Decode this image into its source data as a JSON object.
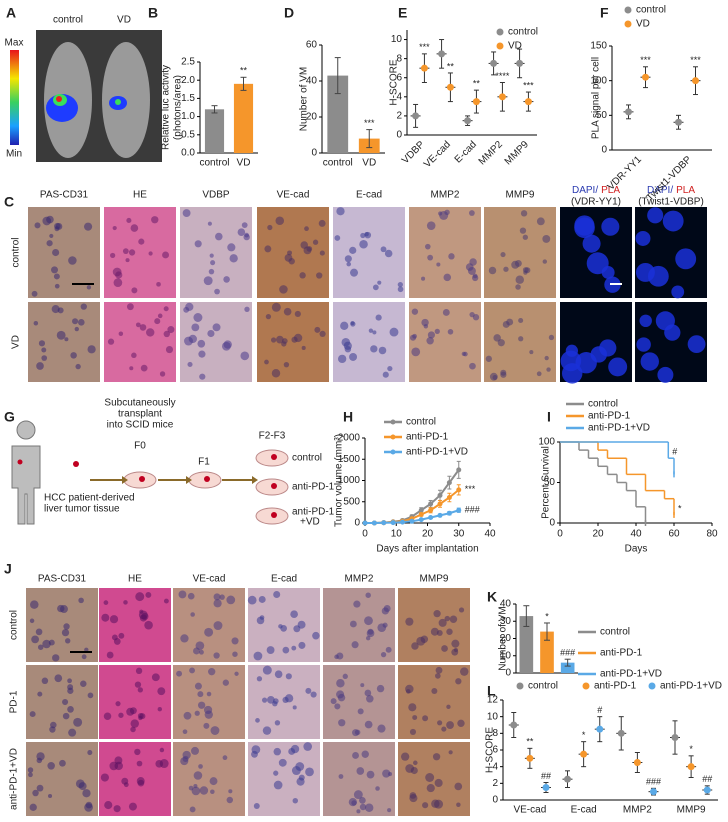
{
  "figure": {
    "A": {
      "panel": "A",
      "labels": [
        "control",
        "VD"
      ],
      "scale_max": "Max",
      "scale_min": "Min"
    },
    "C": {
      "panel": "C",
      "columns": [
        "PAS-CD31",
        "HE",
        "VDBP",
        "VE-cad",
        "E-cad",
        "MMP2",
        "MMP9"
      ],
      "pla_columns": [
        {
          "dapi": "DAPI/",
          "pla": "PLA",
          "target": "(VDR-YY1)"
        },
        {
          "dapi": "DAPI/",
          "pla": "PLA",
          "target": "(Twist1-VDBP)"
        }
      ],
      "rows": [
        "control",
        "VD"
      ]
    },
    "G": {
      "panel": "G",
      "transplant": [
        "Subcutaneously",
        "transplant",
        "into SCID mice"
      ],
      "generations": [
        "F0",
        "F1",
        "F2-F3"
      ],
      "groups": [
        "control",
        "anti-PD-1"
      ],
      "group3": [
        "anti-PD-1",
        "+VD"
      ],
      "source": [
        "HCC patient-derived",
        "liver tumor tissue"
      ]
    },
    "J": {
      "panel": "J",
      "columns": [
        "PAS-CD31",
        "HE",
        "VE-cad",
        "E-cad",
        "MMP2",
        "MMP9"
      ],
      "rows": [
        "control",
        "PD-1",
        "anti-PD-1+VD"
      ]
    }
  },
  "chart_data": [
    {
      "type": "bar",
      "panel": "B",
      "ylabel": [
        "Relative luc activity",
        "(photons/area)"
      ],
      "categories": [
        "control",
        "VD"
      ],
      "values": [
        1.2,
        1.9
      ],
      "errors": [
        0.1,
        0.18
      ],
      "colors": [
        "#8c8c8c",
        "#f5962b"
      ],
      "significance": [
        null,
        "**"
      ],
      "ylim": [
        0,
        2.5
      ],
      "yticks": [
        {
          "value": 0,
          "label": "0.0"
        },
        {
          "value": 0.5,
          "label": "0.5"
        },
        {
          "value": 1,
          "label": "1.0"
        },
        {
          "value": 1.5,
          "label": "1.5"
        },
        {
          "value": 2,
          "label": "2.0"
        },
        {
          "value": 2.5,
          "label": "2.5"
        }
      ]
    },
    {
      "type": "bar",
      "panel": "D",
      "ylabel": [
        "Number of VM"
      ],
      "categories": [
        "control",
        "VD"
      ],
      "values": [
        43,
        8
      ],
      "errors": [
        10,
        5
      ],
      "colors": [
        "#8c8c8c",
        "#f5962b"
      ],
      "significance": [
        null,
        "***"
      ],
      "ylim": [
        0,
        60
      ],
      "yticks": [
        0,
        20,
        40,
        60
      ]
    },
    {
      "type": "dot",
      "panel": "E",
      "ylabel": [
        "H-SCORE"
      ],
      "categories": [
        "VDBP",
        "VE-cad",
        "E-cad",
        "MMP2",
        "MMP9"
      ],
      "series": [
        {
          "name": "control",
          "color": "#8c8c8c",
          "values": [
            2,
            8.5,
            1.5,
            7.5,
            7.5
          ],
          "errors": [
            1.2,
            1.5,
            0.5,
            1.2,
            1.5
          ],
          "significance": [
            null,
            null,
            null,
            null,
            null
          ]
        },
        {
          "name": "VD",
          "color": "#f5962b",
          "values": [
            7,
            5,
            3.5,
            4,
            3.5
          ],
          "errors": [
            1.5,
            1.5,
            1.2,
            1.5,
            1
          ],
          "significance": [
            "***",
            "**",
            "**",
            "****",
            "***"
          ]
        }
      ],
      "ylim": [
        0,
        11
      ],
      "yticks": [
        0,
        2,
        4,
        6,
        8,
        10
      ]
    },
    {
      "type": "dot",
      "panel": "F",
      "ylabel": [
        "PLA signal per cell"
      ],
      "categories": [
        "VDR-YY1",
        "Twist1-VDBP"
      ],
      "series": [
        {
          "name": "control",
          "color": "#8c8c8c",
          "values": [
            55,
            40
          ],
          "errors": [
            10,
            10
          ],
          "significance": [
            null,
            null
          ]
        },
        {
          "name": "VD",
          "color": "#f5962b",
          "values": [
            105,
            100
          ],
          "errors": [
            15,
            20
          ],
          "significance": [
            "***",
            "***"
          ]
        }
      ],
      "ylim": [
        0,
        150
      ],
      "yticks": [
        0,
        50,
        100,
        150
      ]
    },
    {
      "type": "line",
      "panel": "H",
      "ylabel": [
        "Tumor volume (mm³)"
      ],
      "xlabel": "Days after implantation",
      "x": [
        0,
        3,
        6,
        9,
        12,
        15,
        18,
        21,
        24,
        27,
        30
      ],
      "series": [
        {
          "name": "control",
          "color": "#8c8c8c",
          "values": [
            0,
            0,
            10,
            30,
            60,
            150,
            300,
            450,
            650,
            950,
            1250
          ],
          "errors": [
            0,
            0,
            5,
            10,
            20,
            40,
            60,
            80,
            120,
            150,
            200
          ],
          "significance": [
            null,
            null,
            null,
            null,
            null,
            null,
            null,
            null,
            null,
            null,
            null
          ]
        },
        {
          "name": "anti-PD-1",
          "color": "#f5962b",
          "values": [
            0,
            0,
            5,
            20,
            40,
            100,
            200,
            300,
            450,
            600,
            780
          ],
          "errors": [
            0,
            0,
            3,
            8,
            15,
            30,
            40,
            60,
            80,
            100,
            120
          ],
          "significance": [
            null,
            null,
            null,
            null,
            null,
            null,
            null,
            null,
            null,
            null,
            "***"
          ]
        },
        {
          "name": "anti-PD-1+VD",
          "color": "#5aa9e6",
          "values": [
            0,
            0,
            5,
            10,
            20,
            40,
            80,
            130,
            180,
            230,
            300
          ],
          "errors": [
            0,
            0,
            2,
            4,
            8,
            12,
            20,
            25,
            30,
            40,
            50
          ],
          "significance": [
            null,
            null,
            null,
            null,
            null,
            null,
            null,
            null,
            null,
            null,
            "###"
          ]
        }
      ],
      "xlim": [
        0,
        40
      ],
      "xticks": [
        0,
        10,
        20,
        30,
        40
      ],
      "ylim": [
        0,
        2000
      ],
      "yticks": [
        0,
        500,
        1000,
        1500,
        2000
      ]
    },
    {
      "type": "step",
      "panel": "I",
      "ylabel": [
        "Percent Survival"
      ],
      "xlabel": "Days",
      "series": [
        {
          "name": "control",
          "color": "#8c8c8c",
          "x": [
            0,
            10,
            15,
            20,
            25,
            30,
            35,
            40,
            45
          ],
          "values": [
            100,
            90,
            80,
            70,
            60,
            50,
            40,
            20,
            0
          ],
          "significance": [
            null,
            null,
            null,
            null,
            null,
            null,
            null,
            null,
            null
          ]
        },
        {
          "name": "anti-PD-1",
          "color": "#f5962b",
          "x": [
            0,
            20,
            25,
            35,
            45,
            55,
            60
          ],
          "values": [
            100,
            90,
            80,
            60,
            40,
            30,
            10
          ],
          "significance": [
            null,
            null,
            null,
            null,
            null,
            null,
            "*"
          ]
        },
        {
          "name": "anti-PD-1+VD",
          "color": "#5aa9e6",
          "x": [
            0,
            57,
            60
          ],
          "values": [
            100,
            80,
            60
          ],
          "significance": [
            null,
            "#",
            null
          ]
        }
      ],
      "xlim": [
        0,
        80
      ],
      "xticks": [
        0,
        20,
        40,
        60,
        80
      ],
      "ylim": [
        0,
        100
      ],
      "yticks": [
        0,
        50,
        100
      ]
    },
    {
      "type": "bar",
      "panel": "K",
      "ylabel": [
        "Number of VM"
      ],
      "series": [
        {
          "name": "control",
          "color": "#8c8c8c",
          "values": [
            33
          ],
          "errors": [
            6
          ],
          "significance": [
            null
          ]
        },
        {
          "name": "anti-PD-1",
          "color": "#f5962b",
          "values": [
            24
          ],
          "errors": [
            5
          ],
          "significance": [
            "*"
          ]
        },
        {
          "name": "anti-PD-1+VD",
          "color": "#5aa9e6",
          "values": [
            6
          ],
          "errors": [
            2
          ],
          "significance": [
            "###"
          ]
        }
      ],
      "ylim": [
        0,
        40
      ],
      "yticks": [
        0,
        10,
        20,
        30,
        40
      ]
    },
    {
      "type": "dot",
      "panel": "L",
      "ylabel": [
        "H-SCORE"
      ],
      "categories": [
        "VE-cad",
        "E-cad",
        "MMP2",
        "MMP9"
      ],
      "series": [
        {
          "name": "control",
          "color": "#8c8c8c",
          "values": [
            9,
            2.5,
            8,
            7.5
          ],
          "errors": [
            1.5,
            1,
            2,
            2
          ],
          "significance": [
            null,
            null,
            null,
            null
          ]
        },
        {
          "name": "anti-PD-1",
          "color": "#f5962b",
          "values": [
            5,
            5.5,
            4.5,
            4
          ],
          "errors": [
            1.2,
            1.5,
            1.2,
            1.3
          ],
          "significance": [
            "**",
            "*",
            null,
            "*"
          ]
        },
        {
          "name": "anti-PD-1+VD",
          "color": "#5aa9e6",
          "values": [
            1.5,
            8.5,
            1,
            1.2
          ],
          "errors": [
            0.6,
            1.5,
            0.4,
            0.5
          ],
          "significance": [
            "##",
            "#",
            "###",
            "##"
          ]
        }
      ],
      "ylim": [
        0,
        12
      ],
      "yticks": [
        0,
        2,
        4,
        6,
        8,
        10,
        12
      ]
    }
  ]
}
